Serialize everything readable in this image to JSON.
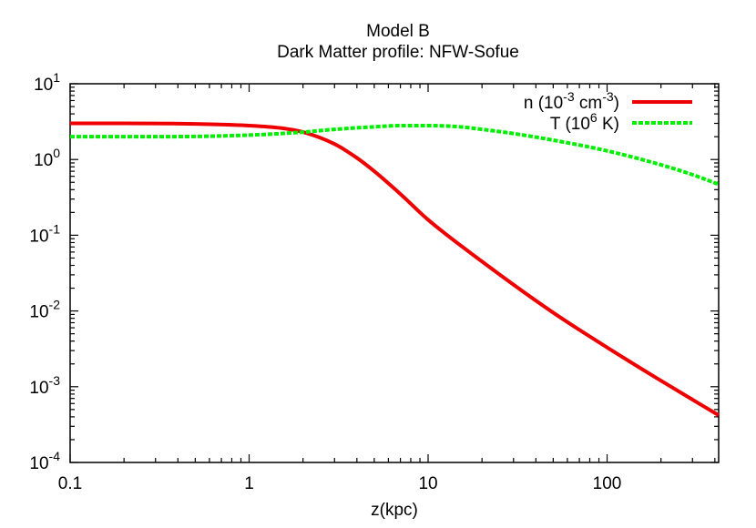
{
  "chart_data": {
    "type": "line",
    "title": "Model B",
    "subtitle": "Dark Matter profile: NFW-Sofue",
    "xlabel": "z(kpc)",
    "ylabel": "",
    "xscale": "log",
    "yscale": "log",
    "xlim": [
      0.1,
      420
    ],
    "ylim": [
      0.0001,
      10
    ],
    "grid": false,
    "legend_position": "top-right",
    "x_ticks": [
      {
        "value": 0.1,
        "label": "0.1"
      },
      {
        "value": 1,
        "label": "1"
      },
      {
        "value": 10,
        "label": "10"
      },
      {
        "value": 100,
        "label": "100"
      }
    ],
    "y_ticks": [
      {
        "value": 10,
        "base": "10",
        "exp": "1"
      },
      {
        "value": 1,
        "base": "10",
        "exp": "0"
      },
      {
        "value": 0.1,
        "base": "10",
        "exp": "-1"
      },
      {
        "value": 0.01,
        "base": "10",
        "exp": "-2"
      },
      {
        "value": 0.001,
        "base": "10",
        "exp": "-3"
      },
      {
        "value": 0.0001,
        "base": "10",
        "exp": "-4"
      }
    ],
    "series": [
      {
        "name": "n (10-3 cm-3)",
        "legend": {
          "pre": "n (10",
          "sup1": "-3",
          "mid": " cm",
          "sup2": "-3",
          "post": ")"
        },
        "color": "#ee0000",
        "dash": "solid",
        "x": [
          0.1,
          0.2,
          0.5,
          1,
          1.5,
          2,
          3,
          4,
          5,
          7,
          10,
          20,
          50,
          100,
          200,
          420
        ],
        "y": [
          3.0,
          3.0,
          2.95,
          2.8,
          2.6,
          2.3,
          1.6,
          1.05,
          0.7,
          0.35,
          0.16,
          0.045,
          0.0095,
          0.0033,
          0.0012,
          0.00042
        ]
      },
      {
        "name": "T (106 K)",
        "legend": {
          "pre": "T (10",
          "sup1": "6",
          "mid": " K)",
          "sup2": "",
          "post": ""
        },
        "color": "#00ee00",
        "dash": "dashed",
        "x": [
          0.1,
          0.3,
          1,
          2,
          3,
          5,
          7,
          10,
          15,
          20,
          30,
          50,
          100,
          200,
          300,
          420
        ],
        "y": [
          2.0,
          2.0,
          2.1,
          2.3,
          2.5,
          2.7,
          2.8,
          2.8,
          2.7,
          2.5,
          2.2,
          1.8,
          1.3,
          0.85,
          0.63,
          0.47
        ]
      }
    ]
  }
}
